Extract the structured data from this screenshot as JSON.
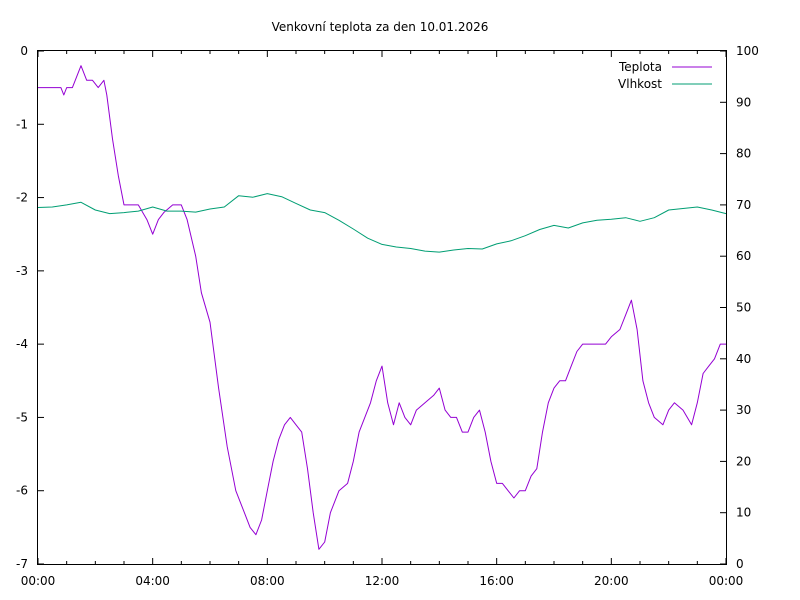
{
  "chart_data": {
    "type": "line",
    "title": "Venkovní teplota za den 10.01.2026",
    "xlabel": "",
    "ylabel": "",
    "y2label": "",
    "x_ticks": [
      "00:00",
      "04:00",
      "08:00",
      "12:00",
      "16:00",
      "20:00",
      "00:00"
    ],
    "x_range_hours": [
      0,
      24
    ],
    "ylim": [
      -7,
      0
    ],
    "y_ticks": [
      0,
      -1,
      -2,
      -3,
      -4,
      -5,
      -6,
      -7
    ],
    "y2lim": [
      0,
      100
    ],
    "y2_ticks": [
      100,
      90,
      80,
      70,
      60,
      50,
      40,
      30,
      20,
      10,
      0
    ],
    "grid": false,
    "legend_position": "top-right",
    "series": [
      {
        "name": "Teplota",
        "axis": "left",
        "color": "#9400d3",
        "x": [
          0,
          0.5,
          0.8,
          0.9,
          1.0,
          1.2,
          1.5,
          1.7,
          1.9,
          2.1,
          2.3,
          2.4,
          2.6,
          2.8,
          3.0,
          3.2,
          3.5,
          3.8,
          4.0,
          4.2,
          4.4,
          4.7,
          5.0,
          5.2,
          5.5,
          5.7,
          6.0,
          6.3,
          6.6,
          6.9,
          7.2,
          7.4,
          7.6,
          7.8,
          8.0,
          8.2,
          8.4,
          8.6,
          8.8,
          9.0,
          9.2,
          9.4,
          9.6,
          9.8,
          10.0,
          10.2,
          10.5,
          10.8,
          11.0,
          11.2,
          11.4,
          11.6,
          11.8,
          12.0,
          12.2,
          12.4,
          12.6,
          12.8,
          13.0,
          13.2,
          13.5,
          13.8,
          14.0,
          14.2,
          14.4,
          14.6,
          14.8,
          15.0,
          15.2,
          15.4,
          15.6,
          15.8,
          16.0,
          16.2,
          16.4,
          16.6,
          16.8,
          17.0,
          17.2,
          17.4,
          17.6,
          17.8,
          18.0,
          18.2,
          18.4,
          18.6,
          18.8,
          19.0,
          19.2,
          19.5,
          19.8,
          20.0,
          20.3,
          20.5,
          20.7,
          20.9,
          21.1,
          21.3,
          21.5,
          21.8,
          22.0,
          22.2,
          22.5,
          22.8,
          23.0,
          23.2,
          23.4,
          23.6,
          23.8,
          24.0
        ],
        "values": [
          -0.5,
          -0.5,
          -0.5,
          -0.6,
          -0.5,
          -0.5,
          -0.2,
          -0.4,
          -0.4,
          -0.5,
          -0.4,
          -0.6,
          -1.2,
          -1.7,
          -2.1,
          -2.1,
          -2.1,
          -2.3,
          -2.5,
          -2.3,
          -2.2,
          -2.1,
          -2.1,
          -2.3,
          -2.8,
          -3.3,
          -3.7,
          -4.6,
          -5.4,
          -6.0,
          -6.3,
          -6.5,
          -6.6,
          -6.4,
          -6.0,
          -5.6,
          -5.3,
          -5.1,
          -5.0,
          -5.1,
          -5.2,
          -5.7,
          -6.3,
          -6.8,
          -6.7,
          -6.3,
          -6.0,
          -5.9,
          -5.6,
          -5.2,
          -5.0,
          -4.8,
          -4.5,
          -4.3,
          -4.8,
          -5.1,
          -4.8,
          -5.0,
          -5.1,
          -4.9,
          -4.8,
          -4.7,
          -4.6,
          -4.9,
          -5.0,
          -5.0,
          -5.2,
          -5.2,
          -5.0,
          -4.9,
          -5.2,
          -5.6,
          -5.9,
          -5.9,
          -6.0,
          -6.1,
          -6.0,
          -6.0,
          -5.8,
          -5.7,
          -5.2,
          -4.8,
          -4.6,
          -4.5,
          -4.5,
          -4.3,
          -4.1,
          -4.0,
          -4.0,
          -4.0,
          -4.0,
          -3.9,
          -3.8,
          -3.6,
          -3.4,
          -3.8,
          -4.5,
          -4.8,
          -5.0,
          -5.1,
          -4.9,
          -4.8,
          -4.9,
          -5.1,
          -4.8,
          -4.4,
          -4.3,
          -4.2,
          -4.0,
          -4.0
        ]
      },
      {
        "name": "Vlhkost",
        "axis": "right",
        "color": "#009e73",
        "x": [
          0,
          0.5,
          1.0,
          1.5,
          2.0,
          2.5,
          3.0,
          3.5,
          4.0,
          4.5,
          5.0,
          5.5,
          6.0,
          6.5,
          7.0,
          7.5,
          8.0,
          8.5,
          9.0,
          9.5,
          10.0,
          10.5,
          11.0,
          11.5,
          12.0,
          12.5,
          13.0,
          13.5,
          14.0,
          14.5,
          15.0,
          15.5,
          16.0,
          16.5,
          17.0,
          17.5,
          18.0,
          18.5,
          19.0,
          19.5,
          20.0,
          20.5,
          21.0,
          21.5,
          22.0,
          22.5,
          23.0,
          23.5,
          24.0
        ],
        "values": [
          69.5,
          69.6,
          70.0,
          70.5,
          69.0,
          68.3,
          68.5,
          68.8,
          69.6,
          68.8,
          68.8,
          68.6,
          69.2,
          69.6,
          71.8,
          71.5,
          72.2,
          71.6,
          70.3,
          69.0,
          68.5,
          67.0,
          65.3,
          63.5,
          62.3,
          61.8,
          61.5,
          61.0,
          60.8,
          61.2,
          61.5,
          61.4,
          62.4,
          63.0,
          64.0,
          65.2,
          66.0,
          65.5,
          66.5,
          67.0,
          67.2,
          67.5,
          66.8,
          67.5,
          69.0,
          69.3,
          69.6,
          69.0,
          68.3
        ]
      }
    ]
  }
}
